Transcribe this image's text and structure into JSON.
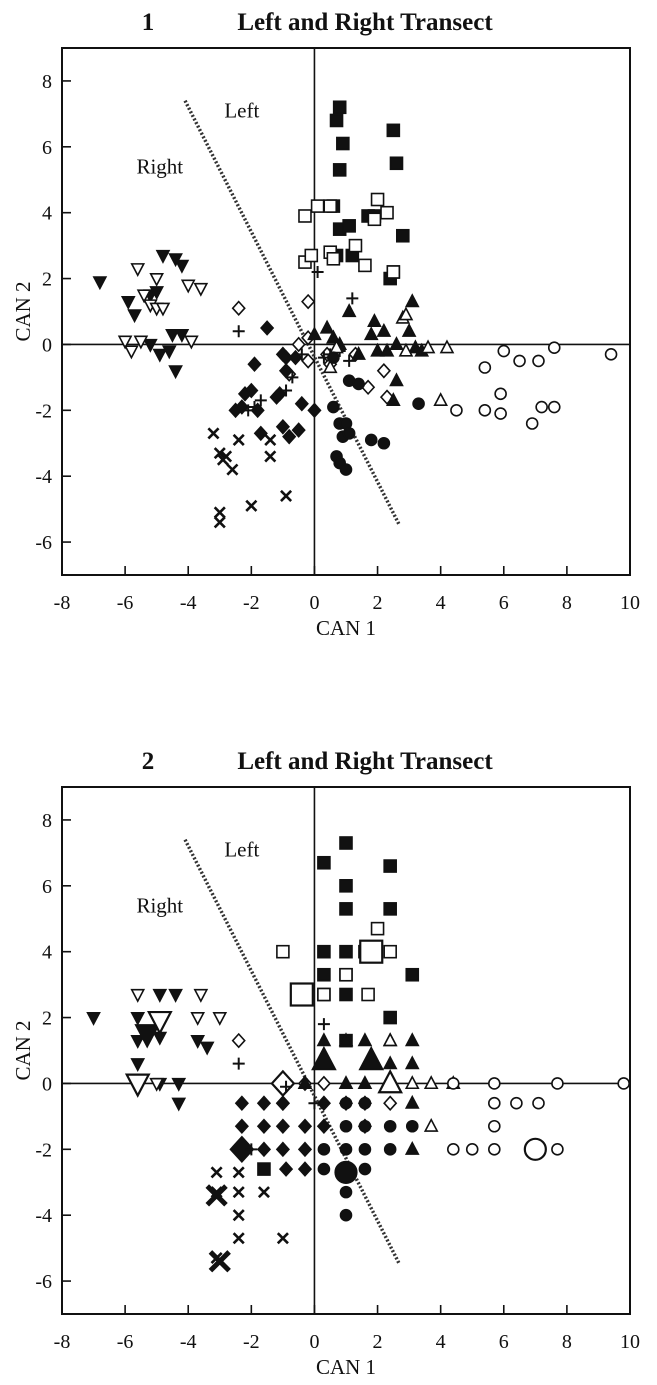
{
  "chart_data": [
    {
      "type": "scatter",
      "panel": "1",
      "title": "Left and Right Transect",
      "x_label": "CAN 1",
      "y_label": "CAN 2",
      "xlim": [
        -8,
        10
      ],
      "ylim": [
        -7,
        9
      ],
      "xticks": [
        -8,
        -6,
        -4,
        -2,
        0,
        2,
        4,
        6,
        8,
        10
      ],
      "yticks": [
        -6,
        -4,
        -2,
        0,
        2,
        4,
        6,
        8
      ],
      "annotations": [
        {
          "text": "Left",
          "x": -2.3,
          "y": 7.1
        },
        {
          "text": "Right",
          "x": -4.9,
          "y": 5.4
        }
      ],
      "reference_line": {
        "x": [
          -4.1,
          2.7
        ],
        "y": [
          7.4,
          -5.5
        ]
      },
      "series": [
        {
          "marker": "square",
          "filled": true,
          "marker_size": "normal",
          "x": [
            0.8,
            0.7,
            0.9,
            0.8,
            2.5,
            2.6,
            0.6,
            0.8,
            1.1,
            1.7,
            1.9,
            2.8,
            0.7,
            1.2,
            2.4,
            2.5
          ],
          "y": [
            7.2,
            6.8,
            6.1,
            5.3,
            6.5,
            5.5,
            4.2,
            3.5,
            3.6,
            3.9,
            3.9,
            3.3,
            2.7,
            2.7,
            2.0,
            2.2
          ]
        },
        {
          "marker": "square",
          "filled": false,
          "marker_size": "normal",
          "x": [
            -0.3,
            0.1,
            0.5,
            2.0,
            2.3,
            1.9,
            -0.3,
            -0.1,
            0.5,
            1.3,
            1.6,
            2.5,
            0.6
          ],
          "y": [
            3.9,
            4.2,
            4.2,
            4.4,
            4.0,
            3.8,
            2.5,
            2.7,
            2.8,
            3.0,
            2.4,
            2.2,
            2.6
          ]
        },
        {
          "marker": "triangle-down",
          "filled": true,
          "marker_size": "normal",
          "x": [
            -6.8,
            -5.9,
            -5.7,
            -5.2,
            -5.0,
            -4.8,
            -4.4,
            -4.2,
            -4.5,
            -4.2,
            -5.2,
            -4.9,
            -4.6,
            -4.4
          ],
          "y": [
            1.9,
            1.3,
            0.9,
            1.5,
            1.6,
            2.7,
            2.6,
            2.4,
            0.3,
            0.3,
            0.0,
            -0.3,
            -0.2,
            -0.8
          ]
        },
        {
          "marker": "triangle-down",
          "filled": false,
          "marker_size": "normal",
          "x": [
            -5.6,
            -5.0,
            -5.4,
            -4.0,
            -3.6,
            -5.2,
            -5.0,
            -4.8,
            -6.0,
            -5.8,
            -5.5,
            -3.9
          ],
          "y": [
            2.3,
            2.0,
            1.5,
            1.8,
            1.7,
            1.2,
            1.1,
            1.1,
            0.1,
            -0.2,
            0.1,
            0.1
          ]
        },
        {
          "marker": "diamond",
          "filled": false,
          "marker_size": "normal",
          "x": [
            -2.4,
            -0.2,
            -0.5,
            -0.2,
            1.3,
            2.2,
            2.3,
            -0.2,
            0.5,
            1.7,
            0.4,
            -0.8
          ],
          "y": [
            1.1,
            1.3,
            0.0,
            0.2,
            -0.3,
            -0.8,
            -1.6,
            -0.5,
            -0.6,
            -1.3,
            -0.3,
            -0.9
          ]
        },
        {
          "marker": "diamond",
          "filled": true,
          "marker_size": "normal",
          "x": [
            -1.9,
            -1.5,
            -1.0,
            -0.9,
            -0.6,
            -2.0,
            -2.2,
            -1.8,
            -2.5,
            -2.3,
            -1.2,
            -1.1,
            -0.9,
            -1.0,
            -0.8,
            -0.5,
            -1.7,
            0.0,
            -0.4
          ],
          "y": [
            -0.6,
            0.5,
            -0.3,
            -0.4,
            -0.4,
            -1.4,
            -1.5,
            -2.0,
            -2.0,
            -1.9,
            -1.6,
            -1.5,
            -0.8,
            -2.5,
            -2.8,
            -2.6,
            -2.7,
            -2.0,
            -1.8
          ]
        },
        {
          "marker": "plus",
          "filled": true,
          "marker_size": "normal",
          "x": [
            0.1,
            -2.4,
            1.2,
            -1.9,
            -2.1,
            -1.7,
            -0.9,
            -0.7,
            0.3,
            0.5,
            0.8,
            1.1,
            -0.4
          ],
          "y": [
            2.2,
            0.4,
            1.4,
            -1.9,
            -2.0,
            -1.7,
            -1.4,
            -1.0,
            -0.4,
            -0.3,
            -0.2,
            -0.5,
            -0.3
          ]
        },
        {
          "marker": "cross",
          "filled": true,
          "marker_size": "normal",
          "x": [
            -3.2,
            -3.0,
            -2.8,
            -2.9,
            -2.6,
            -2.4,
            -1.4,
            -1.4,
            -3.0,
            -3.0,
            -2.0,
            -0.9
          ],
          "y": [
            -2.7,
            -3.3,
            -3.4,
            -3.5,
            -3.8,
            -2.9,
            -2.9,
            -3.4,
            -5.1,
            -5.4,
            -4.9,
            -4.6
          ]
        },
        {
          "marker": "triangle",
          "filled": true,
          "marker_size": "normal",
          "x": [
            0.4,
            0.8,
            1.1,
            1.8,
            1.9,
            2.2,
            3.0,
            3.1,
            2.6,
            1.4,
            2.0,
            2.3,
            3.2,
            3.4,
            2.6,
            2.5,
            0.0,
            0.6
          ],
          "y": [
            0.5,
            0.0,
            1.0,
            0.3,
            0.7,
            0.4,
            0.4,
            1.3,
            0.0,
            -0.3,
            -0.2,
            -0.2,
            -0.1,
            -0.2,
            -1.1,
            -1.7,
            0.3,
            0.2
          ]
        },
        {
          "marker": "triangle",
          "filled": false,
          "marker_size": "normal",
          "x": [
            2.8,
            2.9,
            4.2,
            4.0,
            3.6,
            2.9,
            0.7,
            0.5
          ],
          "y": [
            0.8,
            0.9,
            -0.1,
            -1.7,
            -0.1,
            -0.2,
            -0.1,
            -0.7
          ]
        },
        {
          "marker": "circle",
          "filled": true,
          "marker_size": "normal",
          "x": [
            0.6,
            1.1,
            1.4,
            0.6,
            0.8,
            1.0,
            0.9,
            1.1,
            0.7,
            0.8,
            1.0,
            1.8,
            2.2,
            3.3
          ],
          "y": [
            -0.4,
            -1.1,
            -1.2,
            -1.9,
            -2.4,
            -2.4,
            -2.8,
            -2.7,
            -3.4,
            -3.6,
            -3.8,
            -2.9,
            -3.0,
            -1.8
          ]
        },
        {
          "marker": "circle",
          "filled": false,
          "marker_size": "normal",
          "x": [
            4.5,
            5.4,
            5.9,
            5.9,
            5.4,
            6.0,
            6.5,
            7.1,
            7.6,
            9.4,
            6.9,
            7.2,
            7.6
          ],
          "y": [
            -2.0,
            -2.0,
            -2.1,
            -1.5,
            -0.7,
            -0.2,
            -0.5,
            -0.5,
            -0.1,
            -0.3,
            -2.4,
            -1.9,
            -1.9
          ]
        }
      ]
    },
    {
      "type": "scatter",
      "panel": "2",
      "title": "Left and Right Transect",
      "x_label": "CAN 1",
      "y_label": "CAN 2",
      "xlim": [
        -8,
        10
      ],
      "ylim": [
        -7,
        9
      ],
      "xticks": [
        -8,
        -6,
        -4,
        -2,
        0,
        2,
        4,
        6,
        8,
        10
      ],
      "yticks": [
        -6,
        -4,
        -2,
        0,
        2,
        4,
        6,
        8
      ],
      "annotations": [
        {
          "text": "Left",
          "x": -2.3,
          "y": 7.1
        },
        {
          "text": "Right",
          "x": -4.9,
          "y": 5.4
        }
      ],
      "reference_line": {
        "x": [
          -4.1,
          2.7
        ],
        "y": [
          7.4,
          -5.5
        ]
      },
      "series": [
        {
          "marker": "square",
          "filled": true,
          "marker_size": "normal",
          "x": [
            0.3,
            1.0,
            1.0,
            1.0,
            2.4,
            2.4,
            0.3,
            1.0,
            1.6,
            0.3,
            1.0,
            1.0,
            0.3,
            1.0,
            2.4,
            3.1,
            -1.6
          ],
          "y": [
            6.7,
            7.3,
            6.0,
            5.3,
            6.6,
            5.3,
            4.0,
            4.0,
            4.0,
            3.3,
            3.3,
            2.7,
            2.7,
            1.3,
            2.0,
            3.3,
            -2.6
          ]
        },
        {
          "marker": "square",
          "filled": false,
          "marker_size": "normal",
          "x": [
            -1.0,
            2.0,
            1.7,
            2.4,
            1.0,
            0.3,
            1.7
          ],
          "y": [
            4.0,
            4.7,
            4.0,
            4.0,
            3.3,
            2.7,
            2.7
          ]
        },
        {
          "marker": "square",
          "filled": false,
          "marker_size": "large",
          "x": [
            1.8,
            -0.4
          ],
          "y": [
            4.0,
            2.7
          ]
        },
        {
          "marker": "triangle-down",
          "filled": true,
          "marker_size": "normal",
          "x": [
            -7.0,
            -5.6,
            -5.6,
            -4.9,
            -4.4,
            -4.9,
            -3.7,
            -5.6,
            -4.9,
            -4.3,
            -4.3,
            -3.4
          ],
          "y": [
            2.0,
            2.0,
            1.3,
            1.4,
            2.7,
            2.7,
            1.3,
            0.6,
            0.0,
            0.0,
            -0.6,
            1.1
          ]
        },
        {
          "marker": "triangle-down",
          "filled": true,
          "marker_size": "large",
          "x": [
            -5.3
          ],
          "y": [
            1.5
          ]
        },
        {
          "marker": "triangle-down",
          "filled": false,
          "marker_size": "normal",
          "x": [
            -5.6,
            -4.9,
            -3.7,
            -3.0,
            -3.6,
            -5.0
          ],
          "y": [
            2.7,
            2.0,
            2.0,
            2.0,
            2.7,
            0.0
          ]
        },
        {
          "marker": "triangle-down",
          "filled": false,
          "marker_size": "large",
          "x": [
            -5.6,
            -4.9
          ],
          "y": [
            0.0,
            1.9
          ]
        },
        {
          "marker": "diamond",
          "filled": false,
          "marker_size": "normal",
          "x": [
            -2.4,
            -0.3,
            0.3,
            1.0,
            1.6,
            2.4,
            -1.0,
            1.6
          ],
          "y": [
            1.3,
            0.0,
            0.0,
            -0.6,
            -0.6,
            -0.6,
            -0.6,
            -1.3
          ]
        },
        {
          "marker": "diamond",
          "filled": false,
          "marker_size": "large",
          "x": [
            -1.0
          ],
          "y": [
            0.0
          ]
        },
        {
          "marker": "diamond",
          "filled": true,
          "marker_size": "normal",
          "x": [
            -1.6,
            -1.0,
            -2.3,
            -1.6,
            -1.0,
            -0.3,
            -2.3,
            -1.6,
            -1.0,
            -0.3,
            -0.9,
            -0.3,
            -2.3,
            0.3,
            0.3
          ],
          "y": [
            -0.6,
            -0.6,
            -1.3,
            -1.3,
            -1.3,
            -1.3,
            -2.0,
            -2.0,
            -2.0,
            -2.0,
            -2.6,
            -2.6,
            -0.6,
            -0.6,
            -1.3
          ]
        },
        {
          "marker": "diamond",
          "filled": true,
          "marker_size": "large",
          "x": [
            -2.3
          ],
          "y": [
            -2.0
          ]
        },
        {
          "marker": "plus",
          "filled": true,
          "marker_size": "normal",
          "x": [
            0.3,
            -2.4,
            -2.0,
            -0.3,
            0.3,
            0.0,
            -0.9
          ],
          "y": [
            1.8,
            0.6,
            -2.0,
            -1.3,
            -0.6,
            -0.6,
            -0.1
          ]
        },
        {
          "marker": "cross",
          "filled": true,
          "marker_size": "normal",
          "x": [
            -3.1,
            -2.4,
            -2.4,
            -1.6,
            -2.4,
            -2.4,
            -1.0,
            -3.1,
            -3.1
          ],
          "y": [
            -2.7,
            -2.7,
            -3.3,
            -3.3,
            -4.0,
            -4.7,
            -4.7,
            -5.3,
            -3.3
          ]
        },
        {
          "marker": "cross",
          "filled": true,
          "marker_size": "large",
          "x": [
            -3.1,
            -3.0
          ],
          "y": [
            -3.4,
            -5.4
          ]
        },
        {
          "marker": "triangle",
          "filled": true,
          "marker_size": "normal",
          "x": [
            0.3,
            1.0,
            1.6,
            2.4,
            3.1,
            2.4,
            1.7,
            3.1,
            1.0,
            -0.3,
            1.6,
            2.4,
            3.1,
            3.1
          ],
          "y": [
            1.3,
            1.3,
            1.3,
            1.3,
            1.3,
            0.6,
            0.6,
            0.6,
            0.0,
            0.0,
            0.0,
            0.0,
            -0.6,
            -2.0
          ]
        },
        {
          "marker": "triangle",
          "filled": true,
          "marker_size": "large",
          "x": [
            0.3,
            1.8
          ],
          "y": [
            0.7,
            0.7
          ]
        },
        {
          "marker": "triangle",
          "filled": false,
          "marker_size": "normal",
          "x": [
            3.1,
            3.7,
            4.4,
            3.7,
            2.4
          ],
          "y": [
            0.0,
            0.0,
            0.0,
            -1.3,
            1.3
          ]
        },
        {
          "marker": "triangle",
          "filled": false,
          "marker_size": "large",
          "x": [
            2.4
          ],
          "y": [
            0.0
          ]
        },
        {
          "marker": "circle",
          "filled": true,
          "marker_size": "normal",
          "x": [
            1.0,
            1.6,
            1.0,
            1.6,
            2.4,
            0.3,
            1.0,
            1.6,
            2.4,
            0.3,
            1.6,
            1.0,
            1.0,
            3.1
          ],
          "y": [
            -0.6,
            -0.6,
            -1.3,
            -1.3,
            -1.3,
            -2.0,
            -2.0,
            -2.0,
            -2.0,
            -2.6,
            -2.6,
            -3.3,
            -4.0,
            -1.3
          ]
        },
        {
          "marker": "circle",
          "filled": true,
          "marker_size": "large",
          "x": [
            1.0
          ],
          "y": [
            -2.7
          ]
        },
        {
          "marker": "circle",
          "filled": false,
          "marker_size": "normal",
          "x": [
            5.7,
            5.7,
            6.4,
            7.1,
            5.7,
            4.4,
            5.0,
            5.7,
            7.7,
            4.4,
            7.7,
            9.8
          ],
          "y": [
            0.0,
            -0.6,
            -0.6,
            -0.6,
            -1.3,
            -2.0,
            -2.0,
            -2.0,
            -2.0,
            0.0,
            0.0,
            0.0
          ]
        },
        {
          "marker": "circle",
          "filled": false,
          "marker_size": "large",
          "x": [
            7.0
          ],
          "y": [
            -2.0
          ]
        }
      ]
    }
  ]
}
